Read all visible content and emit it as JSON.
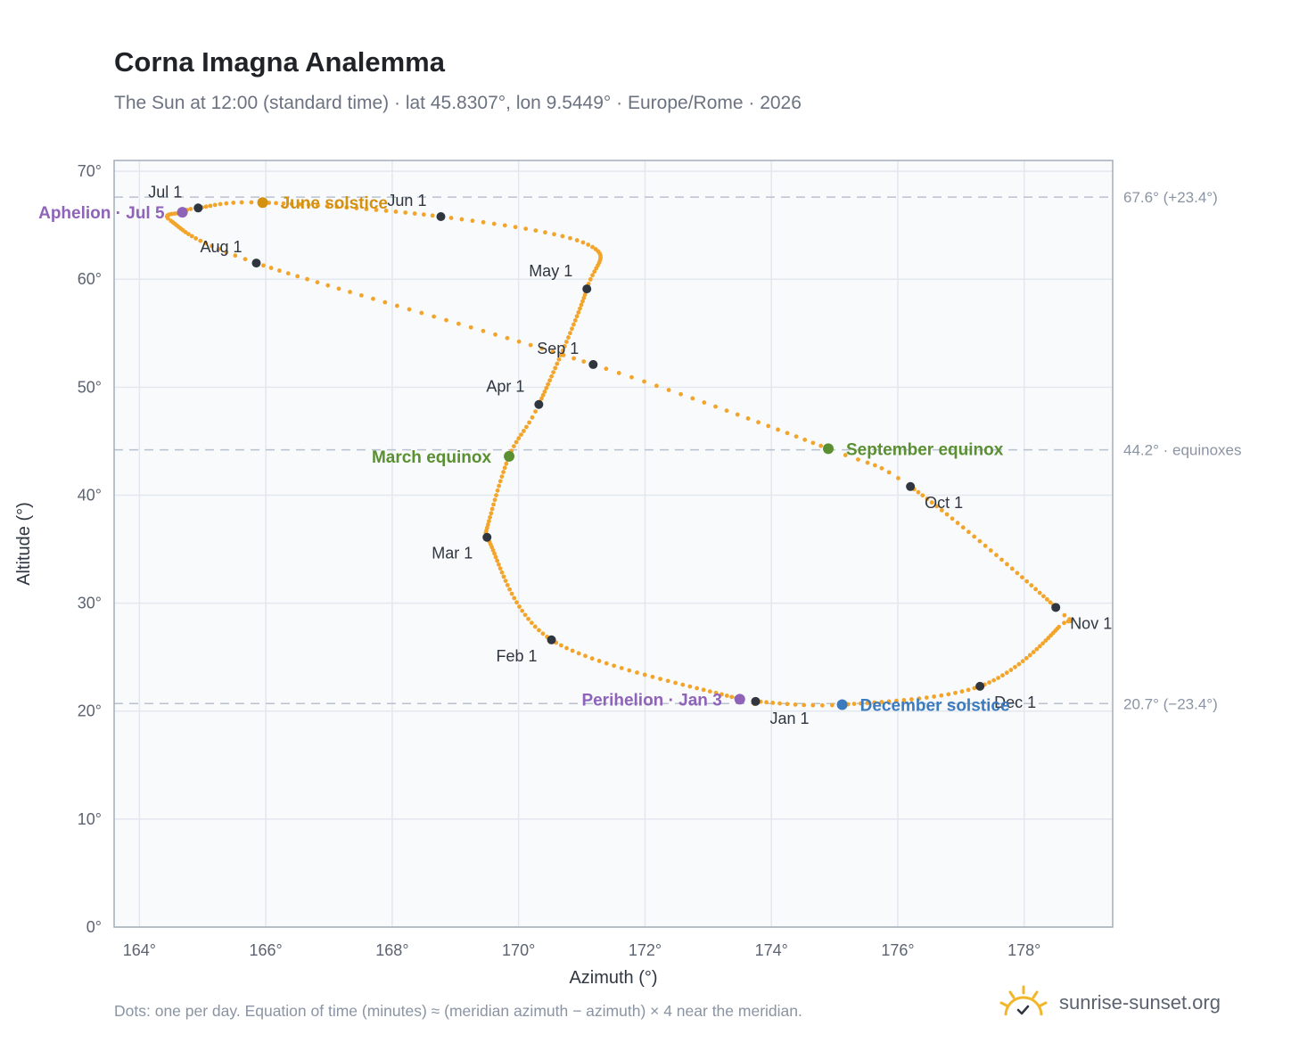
{
  "title": "Corna Imagna Analemma",
  "subtitle": "The Sun at 12:00 (standard time) · lat 45.8307°, lon 9.5449° · Europe/Rome · 2026",
  "footnote": "Dots: one per day. Equation of time (minutes) ≈ (meridian azimuth − azimuth) × 4 near the meridian.",
  "brand": "sunrise-sunset.org",
  "colors": {
    "path": "#f2a52a",
    "month_marker": "#2f3640",
    "june_solstice": "#d4900f",
    "december_solstice": "#3d7bbf",
    "equinox": "#5a8f32",
    "apsis": "#8e63b8",
    "plot_bg": "#f8fafc",
    "grid": "#e3e8ee",
    "axis_text": "#5c6370",
    "ref_line": "#b8c2cf"
  },
  "chart_data": {
    "type": "scatter",
    "xlabel": "Azimuth (°)",
    "ylabel": "Altitude (°)",
    "xlim": [
      163.6,
      179.4
    ],
    "ylim": [
      0,
      71
    ],
    "x_ticks": [
      {
        "value": 164,
        "label": "164°"
      },
      {
        "value": 166,
        "label": "166°"
      },
      {
        "value": 168,
        "label": "168°"
      },
      {
        "value": 170,
        "label": "170°"
      },
      {
        "value": 172,
        "label": "172°"
      },
      {
        "value": 174,
        "label": "174°"
      },
      {
        "value": 176,
        "label": "176°"
      },
      {
        "value": 178,
        "label": "178°"
      }
    ],
    "y_ticks": [
      {
        "value": 0,
        "label": "0°"
      },
      {
        "value": 10,
        "label": "10°"
      },
      {
        "value": 20,
        "label": "20°"
      },
      {
        "value": 30,
        "label": "30°"
      },
      {
        "value": 40,
        "label": "40°"
      },
      {
        "value": 50,
        "label": "50°"
      },
      {
        "value": 60,
        "label": "60°"
      },
      {
        "value": 70,
        "label": "70°"
      }
    ],
    "grid": true,
    "reference_lines": [
      {
        "y": 67.6,
        "label": "67.6° (+23.4°)"
      },
      {
        "y": 44.2,
        "label": "44.2° · equinoxes"
      },
      {
        "y": 20.7,
        "label": "20.7° (−23.4°)"
      }
    ],
    "path_note": "one dot per day",
    "month_markers": [
      {
        "label": "Jan 1",
        "azimuth": 173.75,
        "altitude": 20.9,
        "label_side": "below-right"
      },
      {
        "label": "Feb 1",
        "azimuth": 170.52,
        "altitude": 26.6,
        "label_side": "below-left"
      },
      {
        "label": "Mar 1",
        "azimuth": 169.5,
        "altitude": 36.1,
        "label_side": "below-left"
      },
      {
        "label": "Apr 1",
        "azimuth": 170.32,
        "altitude": 48.4,
        "label_side": "above-left"
      },
      {
        "label": "May 1",
        "azimuth": 171.08,
        "altitude": 59.1,
        "label_side": "above-left"
      },
      {
        "label": "Jun 1",
        "azimuth": 168.77,
        "altitude": 65.8,
        "label_side": "above-left"
      },
      {
        "label": "Jul 1",
        "azimuth": 164.93,
        "altitude": 66.6,
        "label_side": "above-left"
      },
      {
        "label": "Aug 1",
        "azimuth": 165.85,
        "altitude": 61.5,
        "label_side": "above-left"
      },
      {
        "label": "Sep 1",
        "azimuth": 171.18,
        "altitude": 52.1,
        "label_side": "above-left"
      },
      {
        "label": "Oct 1",
        "azimuth": 176.2,
        "altitude": 40.8,
        "label_side": "below-right"
      },
      {
        "label": "Nov 1",
        "azimuth": 178.5,
        "altitude": 29.6,
        "label_side": "below-right"
      },
      {
        "label": "Dec 1",
        "azimuth": 177.3,
        "altitude": 22.3,
        "label_side": "below-right"
      }
    ],
    "events": [
      {
        "label": "June solstice",
        "azimuth": 165.95,
        "altitude": 67.1,
        "color_key": "june_solstice",
        "label_side": "right"
      },
      {
        "label": "Aphelion · Jul 5",
        "azimuth": 164.68,
        "altitude": 66.2,
        "color_key": "apsis",
        "label_side": "left"
      },
      {
        "label": "March equinox",
        "azimuth": 169.85,
        "altitude": 43.6,
        "color_key": "equinox",
        "label_side": "left"
      },
      {
        "label": "September equinox",
        "azimuth": 174.9,
        "altitude": 44.3,
        "color_key": "equinox",
        "label_side": "right"
      },
      {
        "label": "Perihelion · Jan 3",
        "azimuth": 173.5,
        "altitude": 21.1,
        "color_key": "apsis",
        "label_side": "left"
      },
      {
        "label": "December solstice",
        "azimuth": 175.12,
        "altitude": 20.6,
        "color_key": "december_solstice",
        "label_side": "right"
      }
    ]
  }
}
